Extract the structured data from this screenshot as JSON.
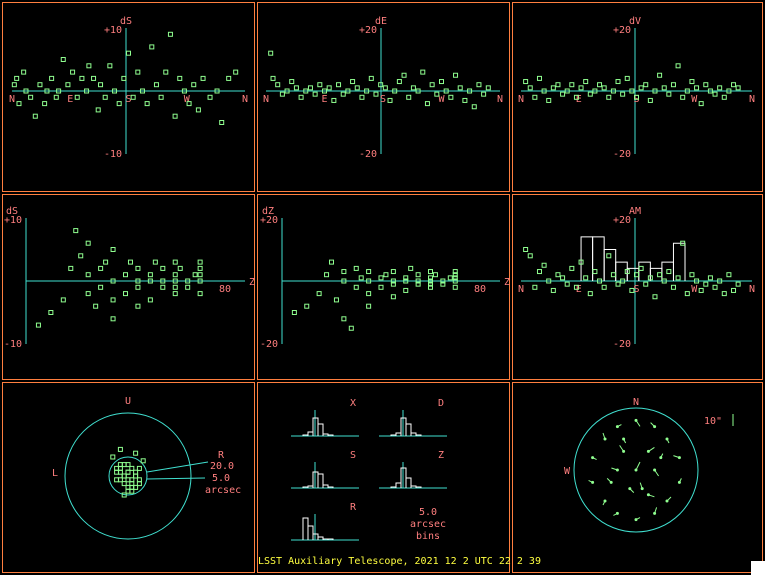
{
  "colors": {
    "border": "#ff7f3f",
    "axis": "#40e0d0",
    "points": "#90ff90",
    "labels": "#ff7f7f",
    "footer": "#ffff40"
  },
  "footer": {
    "text": "LSST Auxiliary Telescope, 2021 12 2 UTC 22 2 39"
  },
  "chart_data": [
    {
      "type": "scatter",
      "id": "dS-vs-azimuth",
      "title": "dS",
      "ylim": [
        -10,
        10
      ],
      "ytick_labels": [
        "+10",
        "-10"
      ],
      "x_markers": [
        "N",
        "E",
        "S",
        "W",
        "N"
      ],
      "x": [
        0.01,
        0.02,
        0.03,
        0.05,
        0.06,
        0.08,
        0.1,
        0.12,
        0.14,
        0.15,
        0.17,
        0.19,
        0.2,
        0.22,
        0.24,
        0.26,
        0.28,
        0.3,
        0.32,
        0.33,
        0.35,
        0.37,
        0.38,
        0.4,
        0.42,
        0.44,
        0.46,
        0.48,
        0.5,
        0.52,
        0.54,
        0.56,
        0.58,
        0.6,
        0.62,
        0.64,
        0.66,
        0.68,
        0.7,
        0.72,
        0.74,
        0.76,
        0.78,
        0.8,
        0.82,
        0.85,
        0.88,
        0.9,
        0.93,
        0.96
      ],
      "values": [
        1,
        2,
        -2,
        3,
        0,
        -1,
        -4,
        1,
        -2,
        0,
        2,
        -1,
        0,
        5,
        1,
        3,
        -1,
        2,
        0,
        4,
        2,
        -3,
        1,
        -1,
        4,
        0,
        -2,
        2,
        6,
        -1,
        3,
        0,
        -2,
        7,
        1,
        -1,
        3,
        9,
        -4,
        2,
        0,
        -2,
        1,
        -3,
        2,
        -1,
        0,
        -5,
        2,
        3
      ]
    },
    {
      "type": "scatter",
      "id": "dE-vs-azimuth",
      "title": "dE",
      "ylim": [
        -20,
        20
      ],
      "ytick_labels": [
        "+20",
        "-20"
      ],
      "x_markers": [
        "N",
        "E",
        "S",
        "W",
        "N"
      ],
      "x": [
        0.02,
        0.03,
        0.05,
        0.07,
        0.09,
        0.11,
        0.13,
        0.15,
        0.17,
        0.19,
        0.21,
        0.23,
        0.25,
        0.27,
        0.29,
        0.31,
        0.33,
        0.35,
        0.37,
        0.39,
        0.41,
        0.43,
        0.45,
        0.47,
        0.49,
        0.51,
        0.53,
        0.55,
        0.57,
        0.59,
        0.61,
        0.63,
        0.65,
        0.67,
        0.69,
        0.71,
        0.73,
        0.75,
        0.77,
        0.79,
        0.81,
        0.83,
        0.85,
        0.87,
        0.89,
        0.91,
        0.93,
        0.95
      ],
      "values": [
        12,
        4,
        2,
        -1,
        0,
        3,
        1,
        -2,
        0,
        1,
        -1,
        2,
        0,
        1,
        -3,
        2,
        -1,
        0,
        3,
        1,
        -2,
        0,
        4,
        -1,
        2,
        1,
        -3,
        0,
        3,
        5,
        -2,
        1,
        0,
        6,
        -4,
        2,
        -1,
        3,
        0,
        -2,
        5,
        1,
        -3,
        0,
        -5,
        2,
        -1,
        1
      ]
    },
    {
      "type": "scatter",
      "id": "dV-vs-azimuth",
      "title": "dV",
      "ylim": [
        -20,
        20
      ],
      "ytick_labels": [
        "+20",
        "-20"
      ],
      "x_markers": [
        "N",
        "E",
        "S",
        "W",
        "N"
      ],
      "x": [
        0.02,
        0.04,
        0.06,
        0.08,
        0.1,
        0.12,
        0.14,
        0.16,
        0.18,
        0.2,
        0.22,
        0.24,
        0.26,
        0.28,
        0.3,
        0.32,
        0.34,
        0.36,
        0.38,
        0.4,
        0.42,
        0.44,
        0.46,
        0.48,
        0.5,
        0.52,
        0.54,
        0.56,
        0.58,
        0.6,
        0.62,
        0.64,
        0.66,
        0.68,
        0.7,
        0.72,
        0.74,
        0.76,
        0.78,
        0.8,
        0.82,
        0.84,
        0.86,
        0.88,
        0.9,
        0.92,
        0.94
      ],
      "values": [
        3,
        1,
        -2,
        4,
        0,
        -3,
        1,
        2,
        -1,
        0,
        2,
        -2,
        1,
        3,
        -1,
        0,
        2,
        1,
        -2,
        0,
        3,
        -1,
        4,
        0,
        -2,
        1,
        2,
        -3,
        0,
        5,
        1,
        -1,
        2,
        8,
        -2,
        0,
        3,
        1,
        -4,
        2,
        0,
        -1,
        1,
        -2,
        0,
        2,
        1
      ]
    },
    {
      "type": "scatter",
      "id": "dS-vs-zenith",
      "title": "dS",
      "ylim": [
        -10,
        10
      ],
      "ytick_labels": [
        "+10",
        "-10"
      ],
      "xlabel": "Z",
      "xtick_labels": [
        "80"
      ],
      "x": [
        5,
        10,
        15,
        18,
        20,
        22,
        25,
        25,
        25,
        28,
        30,
        30,
        32,
        35,
        35,
        35,
        35,
        40,
        40,
        42,
        45,
        45,
        45,
        45,
        50,
        50,
        50,
        52,
        55,
        55,
        55,
        60,
        60,
        60,
        60,
        60,
        62,
        65,
        65,
        68,
        70,
        70,
        70,
        70,
        70
      ],
      "values": [
        -7,
        -5,
        -3,
        2,
        8,
        4,
        1,
        -2,
        6,
        -4,
        2,
        -1,
        3,
        -3,
        0,
        -6,
        5,
        1,
        -2,
        3,
        -4,
        0,
        2,
        -1,
        1,
        -3,
        0,
        3,
        -1,
        0,
        2,
        1,
        -2,
        0,
        3,
        -1,
        2,
        0,
        -1,
        1,
        2,
        0,
        -2,
        1,
        3
      ]
    },
    {
      "type": "scatter",
      "id": "dZ-vs-zenith",
      "title": "dZ",
      "ylim": [
        -20,
        20
      ],
      "ytick_labels": [
        "+20",
        "-20"
      ],
      "xlabel": "Z",
      "xtick_labels": [
        "80"
      ],
      "x": [
        5,
        10,
        15,
        18,
        20,
        22,
        25,
        25,
        25,
        28,
        30,
        30,
        32,
        35,
        35,
        35,
        35,
        40,
        40,
        42,
        45,
        45,
        45,
        45,
        50,
        50,
        50,
        52,
        55,
        55,
        55,
        60,
        60,
        60,
        60,
        60,
        62,
        65,
        65,
        68,
        70,
        70,
        70,
        70,
        70
      ],
      "values": [
        -10,
        -8,
        -4,
        2,
        6,
        -6,
        3,
        -12,
        0,
        -15,
        4,
        -2,
        1,
        -4,
        0,
        -8,
        3,
        1,
        -2,
        2,
        -5,
        0,
        3,
        -1,
        1,
        -3,
        0,
        4,
        -1,
        0,
        2,
        1,
        -2,
        0,
        3,
        -1,
        2,
        0,
        -1,
        1,
        2,
        0,
        -2,
        1,
        3
      ]
    },
    {
      "type": "scatter",
      "id": "AM-vs-azimuth",
      "title": "AM",
      "ylim": [
        -20,
        20
      ],
      "ytick_labels": [
        "+20",
        "-20"
      ],
      "x_markers": [
        "N",
        "E",
        "S",
        "W",
        "N"
      ],
      "x": [
        0.02,
        0.04,
        0.06,
        0.08,
        0.1,
        0.12,
        0.14,
        0.16,
        0.18,
        0.2,
        0.22,
        0.24,
        0.26,
        0.28,
        0.3,
        0.32,
        0.34,
        0.36,
        0.38,
        0.4,
        0.42,
        0.44,
        0.46,
        0.48,
        0.5,
        0.52,
        0.54,
        0.56,
        0.58,
        0.6,
        0.62,
        0.64,
        0.66,
        0.68,
        0.7,
        0.72,
        0.74,
        0.76,
        0.78,
        0.8,
        0.82,
        0.84,
        0.86,
        0.88,
        0.9,
        0.92,
        0.94
      ],
      "values": [
        10,
        8,
        -2,
        3,
        5,
        0,
        -3,
        2,
        1,
        -1,
        4,
        -2,
        6,
        1,
        -4,
        3,
        0,
        -2,
        8,
        2,
        -1,
        0,
        3,
        -3,
        2,
        4,
        -1,
        1,
        -5,
        2,
        0,
        3,
        -2,
        1,
        12,
        -4,
        2,
        0,
        -3,
        -1,
        1,
        -2,
        0,
        -4,
        2,
        -3,
        -1
      ],
      "bars": [
        {
          "x0": 0.26,
          "x1": 0.31,
          "value": 14
        },
        {
          "x0": 0.31,
          "x1": 0.36,
          "value": 14
        },
        {
          "x0": 0.36,
          "x1": 0.41,
          "value": 10
        },
        {
          "x0": 0.41,
          "x1": 0.46,
          "value": 6
        },
        {
          "x0": 0.46,
          "x1": 0.51,
          "value": 4
        },
        {
          "x0": 0.51,
          "x1": 0.56,
          "value": 6
        },
        {
          "x0": 0.56,
          "x1": 0.61,
          "value": 4
        },
        {
          "x0": 0.61,
          "x1": 0.66,
          "value": 6
        },
        {
          "x0": 0.66,
          "x1": 0.71,
          "value": 12
        }
      ]
    },
    {
      "type": "scatter",
      "id": "radial-error-target",
      "title": "",
      "top_label": "U",
      "left_label": "L",
      "right_label": "R",
      "ring_labels": [
        "20.0",
        "5.0",
        "arcsec"
      ],
      "outer_radius": 20,
      "inner_radius": 5,
      "x": [
        -3,
        -2,
        -1,
        0,
        1,
        2,
        3,
        -2,
        -1,
        0,
        1,
        2,
        -3,
        -1,
        0,
        1,
        3,
        -2,
        0,
        2,
        -1,
        1,
        0,
        -4,
        4,
        -2,
        2,
        0,
        -1,
        1,
        -3,
        3,
        -2,
        2
      ],
      "values": [
        1,
        2,
        0,
        1,
        -1,
        0,
        2,
        -1,
        -2,
        3,
        -2,
        1,
        -1,
        0,
        -3,
        2,
        -1,
        1,
        -1,
        0,
        3,
        -3,
        1,
        5,
        4,
        7,
        6,
        -4,
        -5,
        -4,
        2,
        -2,
        3,
        -3
      ]
    },
    {
      "type": "bar",
      "id": "residual-histograms",
      "title": "",
      "bins_label": [
        "5.0",
        "arcsec",
        "bins"
      ],
      "histograms": [
        {
          "label": "X",
          "values": [
            1,
            4,
            18,
            12,
            2,
            1
          ]
        },
        {
          "label": "D",
          "values": [
            1,
            3,
            18,
            12,
            3,
            1
          ]
        },
        {
          "label": "S",
          "values": [
            1,
            2,
            16,
            14,
            3,
            1
          ]
        },
        {
          "label": "Z",
          "values": [
            1,
            5,
            20,
            10,
            2,
            1
          ]
        },
        {
          "label": "R",
          "values": [
            22,
            14,
            6,
            3,
            1,
            1
          ]
        }
      ]
    },
    {
      "type": "scatter",
      "id": "sky-vector-map",
      "title": "",
      "north_label": "N",
      "west_label": "W",
      "scale_label": "10\"",
      "vectors": [
        [
          0.0,
          0.8,
          0.2,
          -0.3
        ],
        [
          0.3,
          0.7,
          -0.2,
          0.2
        ],
        [
          -0.3,
          0.7,
          0.2,
          0.1
        ],
        [
          0.5,
          0.5,
          0.1,
          -0.2
        ],
        [
          -0.5,
          0.5,
          -0.1,
          0.3
        ],
        [
          0.7,
          0.2,
          -0.3,
          0.1
        ],
        [
          -0.7,
          0.2,
          0.2,
          -0.1
        ],
        [
          0.7,
          -0.2,
          0.1,
          0.2
        ],
        [
          -0.7,
          -0.2,
          -0.2,
          0.1
        ],
        [
          0.5,
          -0.5,
          0.2,
          0.2
        ],
        [
          -0.5,
          -0.5,
          -0.1,
          -0.2
        ],
        [
          0.3,
          -0.7,
          0.1,
          0.3
        ],
        [
          -0.3,
          -0.7,
          -0.2,
          -0.1
        ],
        [
          0.0,
          -0.8,
          0.2,
          0.1
        ],
        [
          0.2,
          0.3,
          0.3,
          0.2
        ],
        [
          -0.2,
          0.3,
          -0.2,
          0.3
        ],
        [
          0.3,
          0.0,
          0.2,
          -0.3
        ],
        [
          -0.3,
          0.0,
          -0.3,
          0.1
        ],
        [
          0.0,
          0.0,
          0.2,
          0.4
        ],
        [
          0.1,
          -0.3,
          -0.1,
          0.3
        ],
        [
          -0.1,
          -0.3,
          0.2,
          -0.2
        ],
        [
          0.4,
          0.2,
          0.1,
          0.2
        ],
        [
          -0.4,
          -0.2,
          -0.2,
          0.2
        ],
        [
          0.2,
          -0.4,
          0.3,
          -0.1
        ],
        [
          -0.2,
          0.5,
          0.1,
          -0.2
        ]
      ]
    }
  ]
}
